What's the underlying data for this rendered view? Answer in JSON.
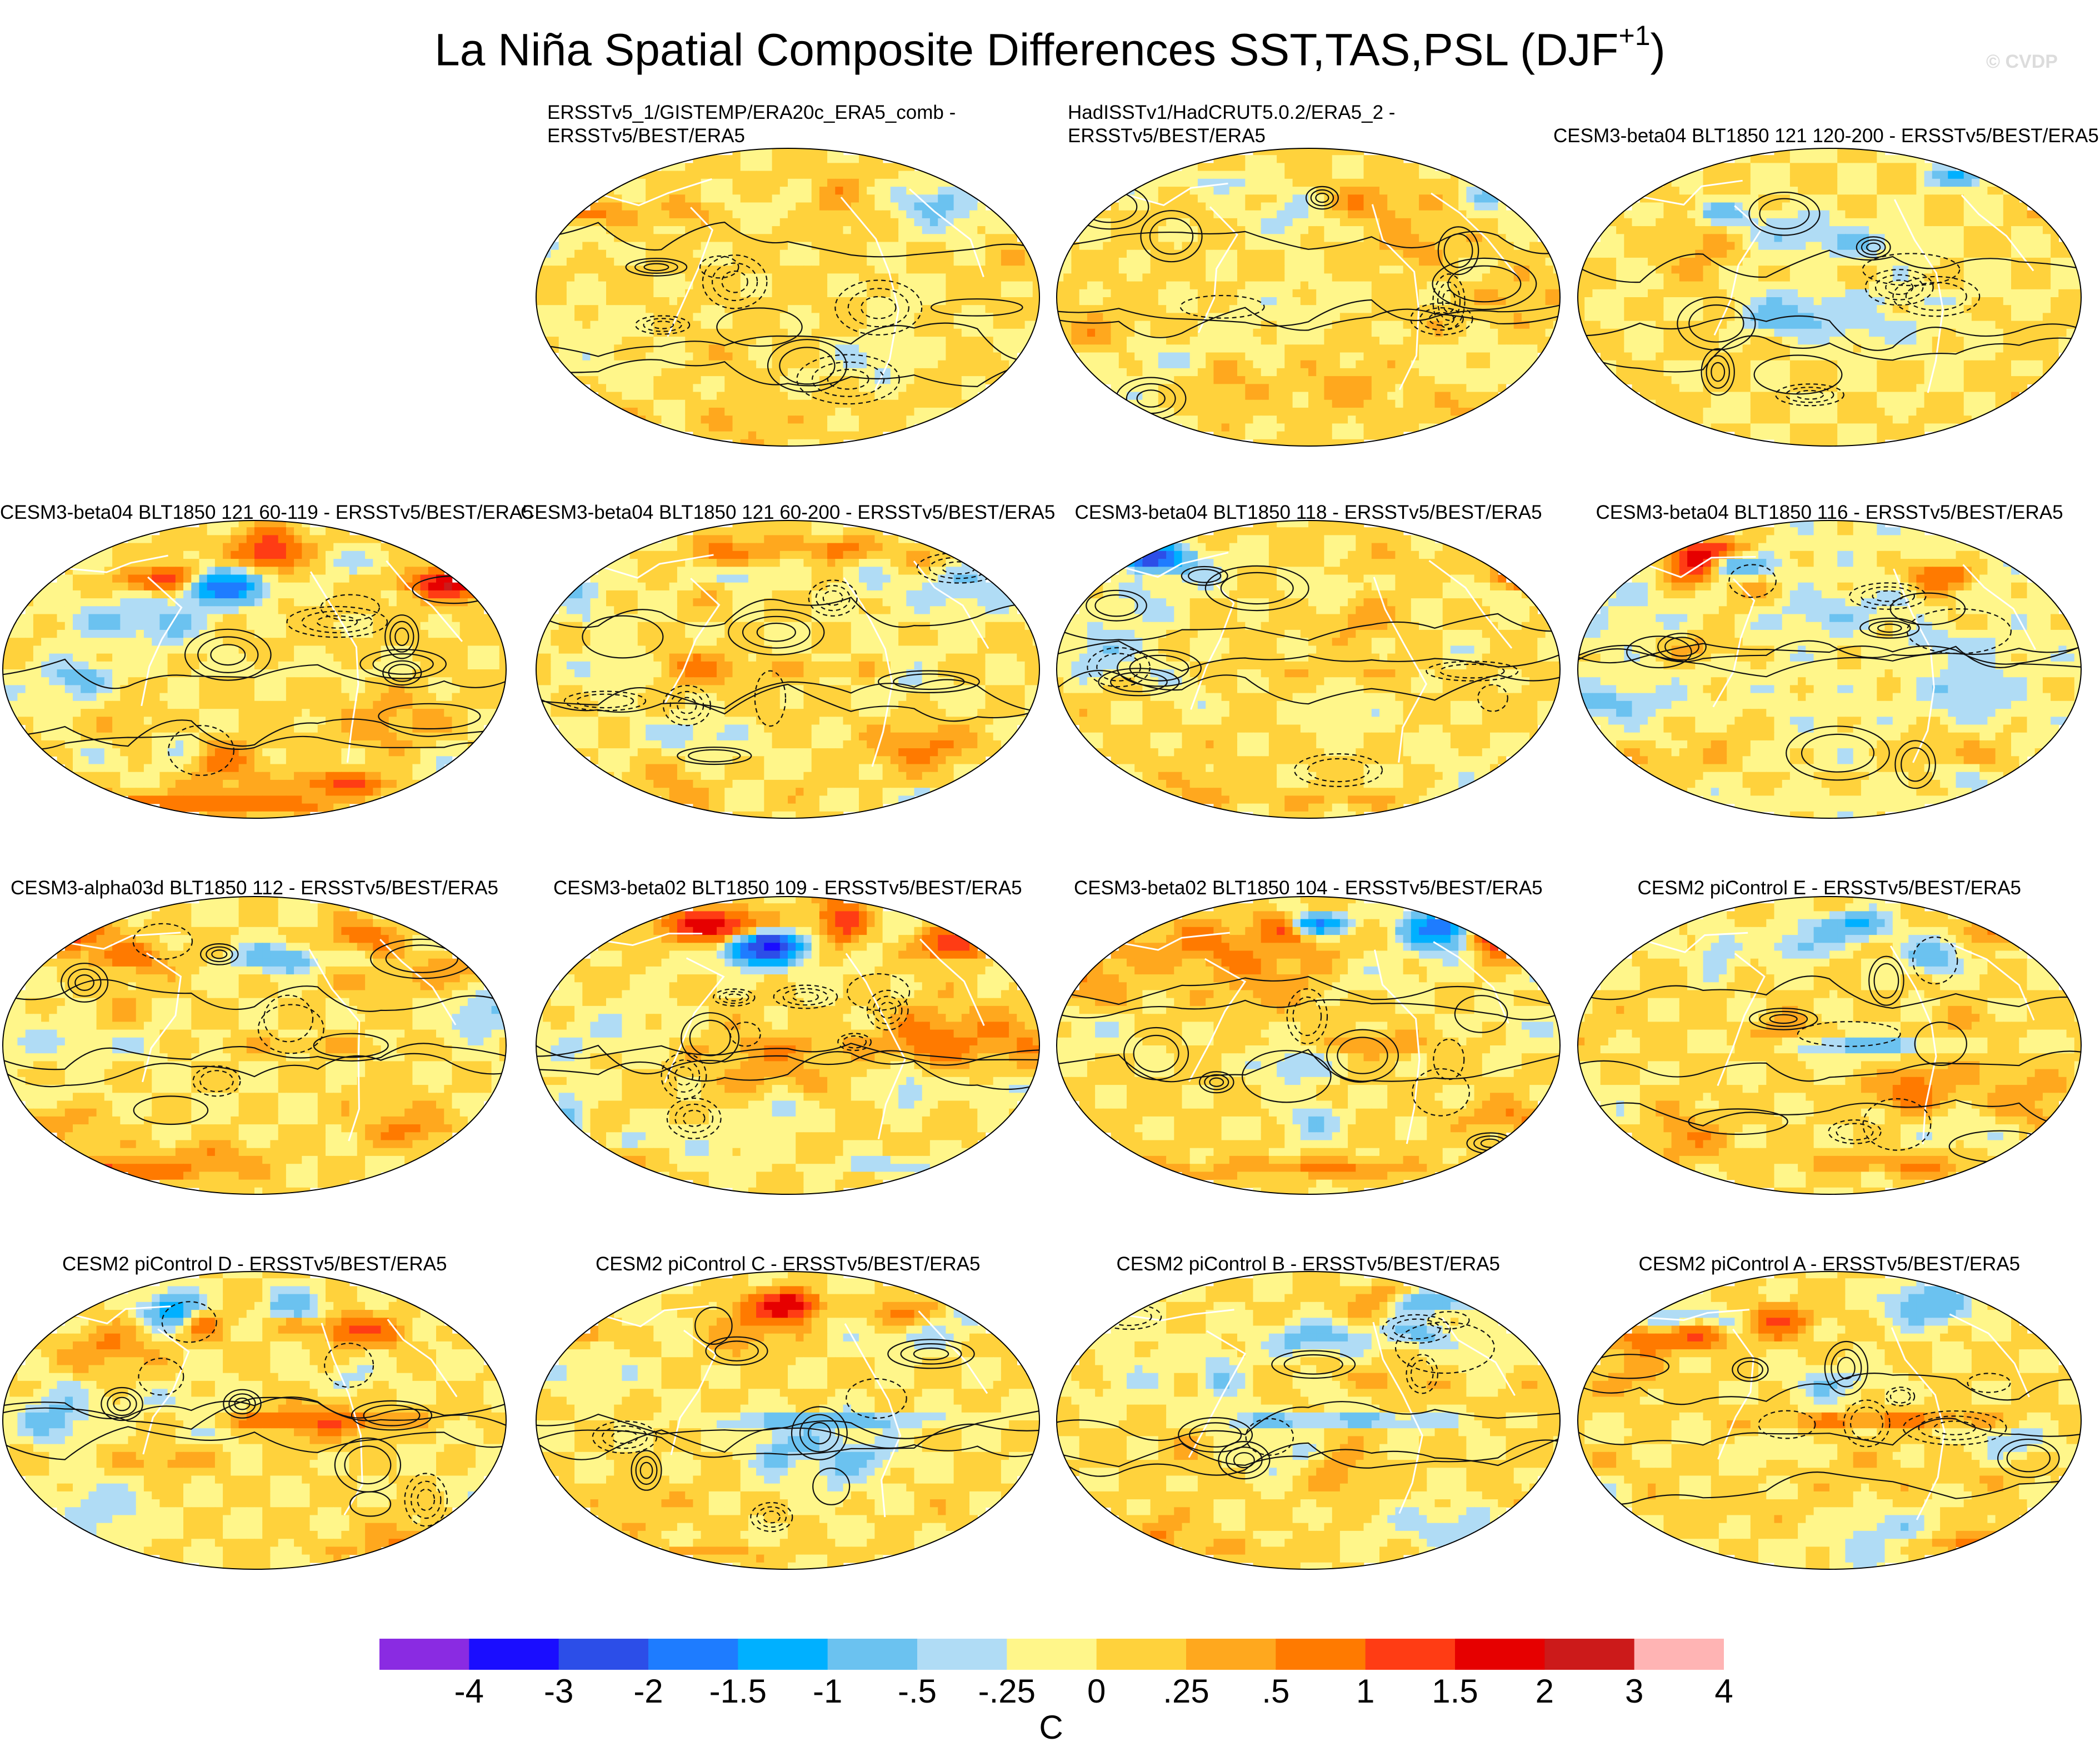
{
  "title": "La Niña Spatial Composite Differences SST,TAS,PSL (DJF",
  "title_superscript": "+1",
  "title_end": ")",
  "copyright": "© CVDP",
  "chart_data": {
    "type": "map-grid",
    "projection": "Robinson",
    "layout": "4 rows x 4 columns (first cell empty)",
    "fill_variable": "SST/TAS composite difference",
    "contour_variable": "PSL composite difference (solid positive, dashed negative)",
    "units": "C",
    "colorbar": {
      "levels": [
        "-4",
        "-3",
        "-2",
        "-1.5",
        "-1",
        "-.5",
        "-.25",
        "0",
        ".25",
        ".5",
        "1",
        "1.5",
        "2",
        "3",
        "4"
      ],
      "colors": [
        "#8a2be2",
        "#1a0dff",
        "#2c4ee8",
        "#1e7cff",
        "#00b0ff",
        "#6bc2f0",
        "#b0dcf5",
        "#fff68a",
        "#ffd23c",
        "#ffa81e",
        "#ff7a00",
        "#ff3c14",
        "#e60000",
        "#cc1a1a",
        "#ffb4b4"
      ]
    },
    "panels": [
      {
        "lines": [
          "ERSSTv5_1/GISTEMP/ERA20c_ERA5_comb -",
          "ERSSTv5/BEST/ERA5"
        ],
        "style": "mild"
      },
      {
        "lines": [
          "HadISSTv1/HadCRUT5.0.2/ERA5_2 -",
          "ERSSTv5/BEST/ERA5"
        ],
        "style": "mild"
      },
      {
        "lines": [
          "CESM3-beta04 BLT1850 121 120-200 - ERSSTv5/BEST/ERA5"
        ],
        "style": "model"
      },
      {
        "lines": [
          "CESM3-beta04 BLT1850 121 60-119 - ERSSTv5/BEST/ERA5"
        ],
        "style": "strong"
      },
      {
        "lines": [
          "CESM3-beta04 BLT1850 121 60-200 - ERSSTv5/BEST/ERA5"
        ],
        "style": "model"
      },
      {
        "lines": [
          "CESM3-beta04 BLT1850 118 - ERSSTv5/BEST/ERA5"
        ],
        "style": "strong"
      },
      {
        "lines": [
          "CESM3-beta04 BLT1850 116 - ERSSTv5/BEST/ERA5"
        ],
        "style": "cold"
      },
      {
        "lines": [
          "CESM3-alpha03d BLT1850 112 - ERSSTv5/BEST/ERA5"
        ],
        "style": "model"
      },
      {
        "lines": [
          "CESM3-beta02 BLT1850 109 - ERSSTv5/BEST/ERA5"
        ],
        "style": "strong"
      },
      {
        "lines": [
          "CESM3-beta02 BLT1850 104 - ERSSTv5/BEST/ERA5"
        ],
        "style": "strong"
      },
      {
        "lines": [
          "CESM2 piControl E - ERSSTv5/BEST/ERA5"
        ],
        "style": "piControl"
      },
      {
        "lines": [
          "CESM2 piControl D - ERSSTv5/BEST/ERA5"
        ],
        "style": "piControl"
      },
      {
        "lines": [
          "CESM2 piControl C - ERSSTv5/BEST/ERA5"
        ],
        "style": "piControl"
      },
      {
        "lines": [
          "CESM2 piControl B - ERSSTv5/BEST/ERA5"
        ],
        "style": "piControl"
      },
      {
        "lines": [
          "CESM2 piControl A - ERSSTv5/BEST/ERA5"
        ],
        "style": "piControl"
      }
    ]
  }
}
